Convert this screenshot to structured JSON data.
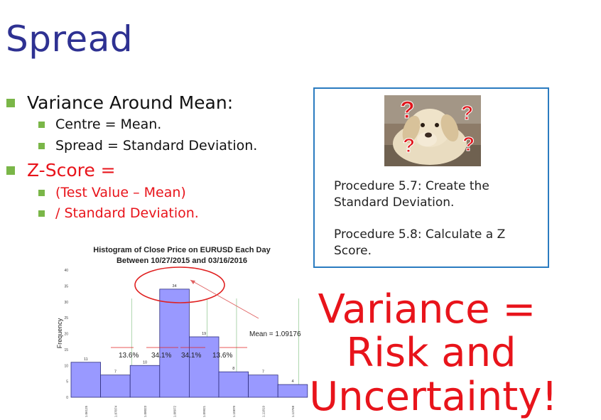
{
  "slide": {
    "title": "Spread",
    "bullets": {
      "b1": "Variance Around Mean:",
      "b1a": "Centre = Mean.",
      "b1b": "Spread = Standard Deviation.",
      "b2": "Z-Score =",
      "b2a": "(Test Value – Mean)",
      "b2b": "/ Standard Deviation."
    },
    "procedures": {
      "p1_line1": "Procedure 5.7: Create the",
      "p1_line2": "Standard Deviation.",
      "p2_line1": "Procedure 5.8: Calculate a Z",
      "p2_line2": "Score."
    },
    "emphasis": {
      "line1": "Variance =",
      "line2": "Risk and",
      "line3": "Uncertainty!"
    },
    "colors": {
      "title": "#2e3192",
      "accent": "#e8141b",
      "bullet": "#7ab648",
      "bar": "#9999ff"
    }
  },
  "chart_data": {
    "type": "bar",
    "title": "Histogram of Close Price on EURUSD Each Day",
    "subtitle": "Between 10/27/2015 and 03/16/2016",
    "xlabel": "",
    "ylabel": "Frequency",
    "ylim": [
      0,
      40
    ],
    "yticks": [
      "0",
      "5",
      "10",
      "15",
      "20",
      "25",
      "30",
      "35",
      "40"
    ],
    "categories": [
      "1.06125",
      "1.07074",
      "1.08023",
      "1.08972",
      "1.09921",
      "1.10870",
      "1.11819",
      "1.12768"
    ],
    "values": [
      11,
      7,
      10,
      34,
      19,
      8,
      7,
      4
    ],
    "annotations": {
      "mean": "Mean = 1.09176",
      "pct_outer_left": "13.6%",
      "pct_inner_left": "34.1%",
      "pct_inner_right": "34.1%",
      "pct_outer_right": "13.6%"
    }
  }
}
